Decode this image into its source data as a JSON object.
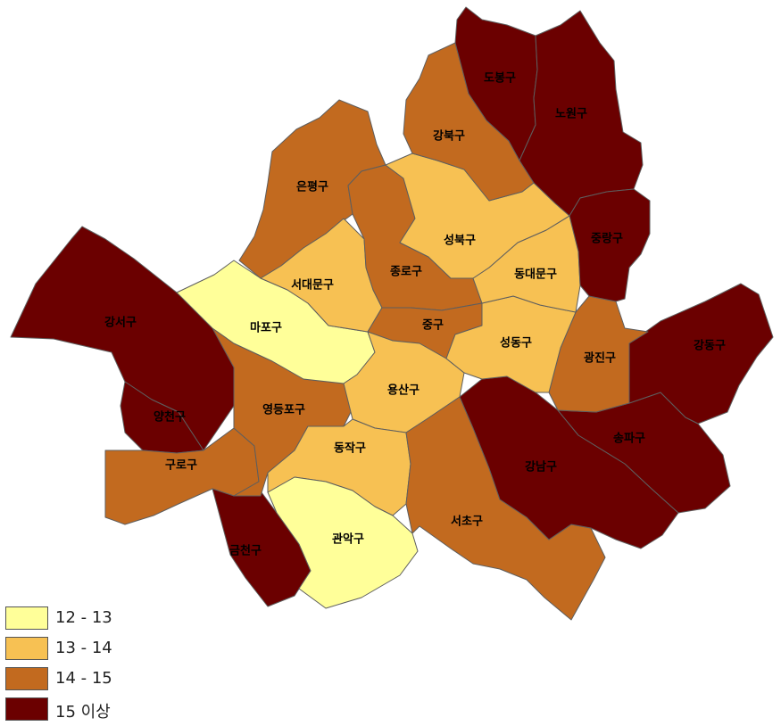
{
  "palette": {
    "c12_13": "#ffff99",
    "c13_14": "#f7c153",
    "c14_15": "#c26a1f",
    "c15_up": "#6b0000"
  },
  "legend": [
    {
      "label": "12 - 13",
      "color": "#ffff99"
    },
    {
      "label": "13 - 14",
      "color": "#f7c153"
    },
    {
      "label": "14 - 15",
      "color": "#c26a1f"
    },
    {
      "label": "15 이상",
      "color": "#6b0000"
    }
  ],
  "districts": [
    {
      "id": "dobong",
      "name": "도봉구",
      "class": "15 이상"
    },
    {
      "id": "nowon",
      "name": "노원구",
      "class": "15 이상"
    },
    {
      "id": "gangbuk",
      "name": "강북구",
      "class": "14 - 15"
    },
    {
      "id": "eunpyeong",
      "name": "은평구",
      "class": "14 - 15"
    },
    {
      "id": "seongbuk",
      "name": "성북구",
      "class": "13 - 14"
    },
    {
      "id": "jungnang",
      "name": "중랑구",
      "class": "15 이상"
    },
    {
      "id": "seodaemun",
      "name": "서대문구",
      "class": "13 - 14"
    },
    {
      "id": "jongno",
      "name": "종로구",
      "class": "14 - 15"
    },
    {
      "id": "dongdaemun",
      "name": "동대문구",
      "class": "13 - 14"
    },
    {
      "id": "mapo",
      "name": "마포구",
      "class": "12 - 13"
    },
    {
      "id": "jung",
      "name": "중구",
      "class": "14 - 15"
    },
    {
      "id": "gangseo",
      "name": "강서구",
      "class": "15 이상"
    },
    {
      "id": "seongdong",
      "name": "성동구",
      "class": "13 - 14"
    },
    {
      "id": "gwangjin",
      "name": "광진구",
      "class": "14 - 15"
    },
    {
      "id": "gangdong",
      "name": "강동구",
      "class": "15 이상"
    },
    {
      "id": "yongsan",
      "name": "용산구",
      "class": "13 - 14"
    },
    {
      "id": "yeongdeungpo",
      "name": "영등포구",
      "class": "14 - 15"
    },
    {
      "id": "yangcheon",
      "name": "양천구",
      "class": "15 이상"
    },
    {
      "id": "songpa",
      "name": "송파구",
      "class": "15 이상"
    },
    {
      "id": "dongjak",
      "name": "동작구",
      "class": "13 - 14"
    },
    {
      "id": "guro",
      "name": "구로구",
      "class": "14 - 15"
    },
    {
      "id": "gangnam",
      "name": "강남구",
      "class": "15 이상"
    },
    {
      "id": "seocho",
      "name": "서초구",
      "class": "14 - 15"
    },
    {
      "id": "gwanak",
      "name": "관악구",
      "class": "12 - 13"
    },
    {
      "id": "geumcheon",
      "name": "금천구",
      "class": "15 이상"
    }
  ]
}
